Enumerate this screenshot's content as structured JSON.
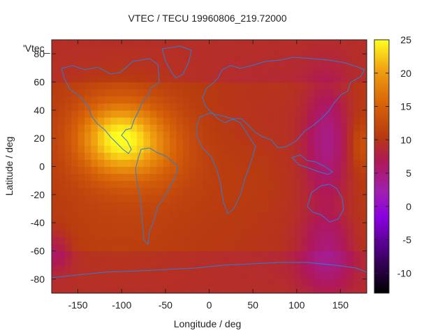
{
  "chart_data": {
    "type": "heatmap",
    "title": "VTEC / TECU 19960806_219.72000",
    "xlabel": "Longitude / deg",
    "ylabel": "Latitude / deg",
    "series_label": "'Vtec_",
    "xlim": [
      -180,
      180
    ],
    "ylim": [
      -90,
      90
    ],
    "x_ticks": [
      -150,
      -100,
      -50,
      0,
      50,
      100,
      150
    ],
    "y_ticks": [
      -80,
      -60,
      -40,
      -20,
      0,
      20,
      40,
      60,
      80
    ],
    "colorbar": {
      "min": -13,
      "max": 25,
      "ticks": [
        25,
        20,
        15,
        10,
        5,
        0,
        -5,
        -10
      ],
      "palette": "black-purple-red-orange-yellow"
    },
    "features": [
      {
        "lon": -105,
        "lat": 20,
        "value": 23
      },
      {
        "lon": 135,
        "lat": 20,
        "value": 5
      },
      {
        "lon": 135,
        "lat": -62,
        "value": 5
      },
      {
        "lon": -175,
        "lat": -60,
        "value": 6
      },
      {
        "lon": 0,
        "lat": 0,
        "value": 11
      }
    ]
  }
}
